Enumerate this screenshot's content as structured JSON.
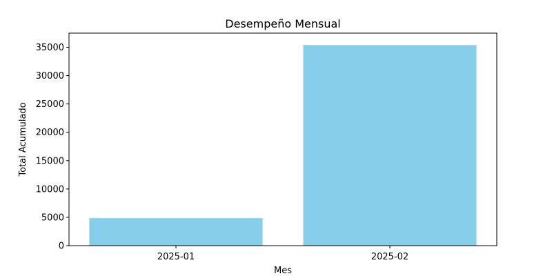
{
  "chart_data": {
    "type": "bar",
    "title": "Desempeño Mensual",
    "xlabel": "Mes",
    "ylabel": "Total Acumulado",
    "categories": [
      "2025-01",
      "2025-02"
    ],
    "values": [
      4850,
      35400
    ],
    "ylim": [
      0,
      37500
    ],
    "yticks": [
      0,
      5000,
      10000,
      15000,
      20000,
      25000,
      30000,
      35000
    ],
    "ytick_labels": [
      "0",
      "5000",
      "10000",
      "15000",
      "20000",
      "25000",
      "30000",
      "35000"
    ],
    "bar_color": "#87CEEB",
    "grid": false,
    "legend": "none"
  }
}
